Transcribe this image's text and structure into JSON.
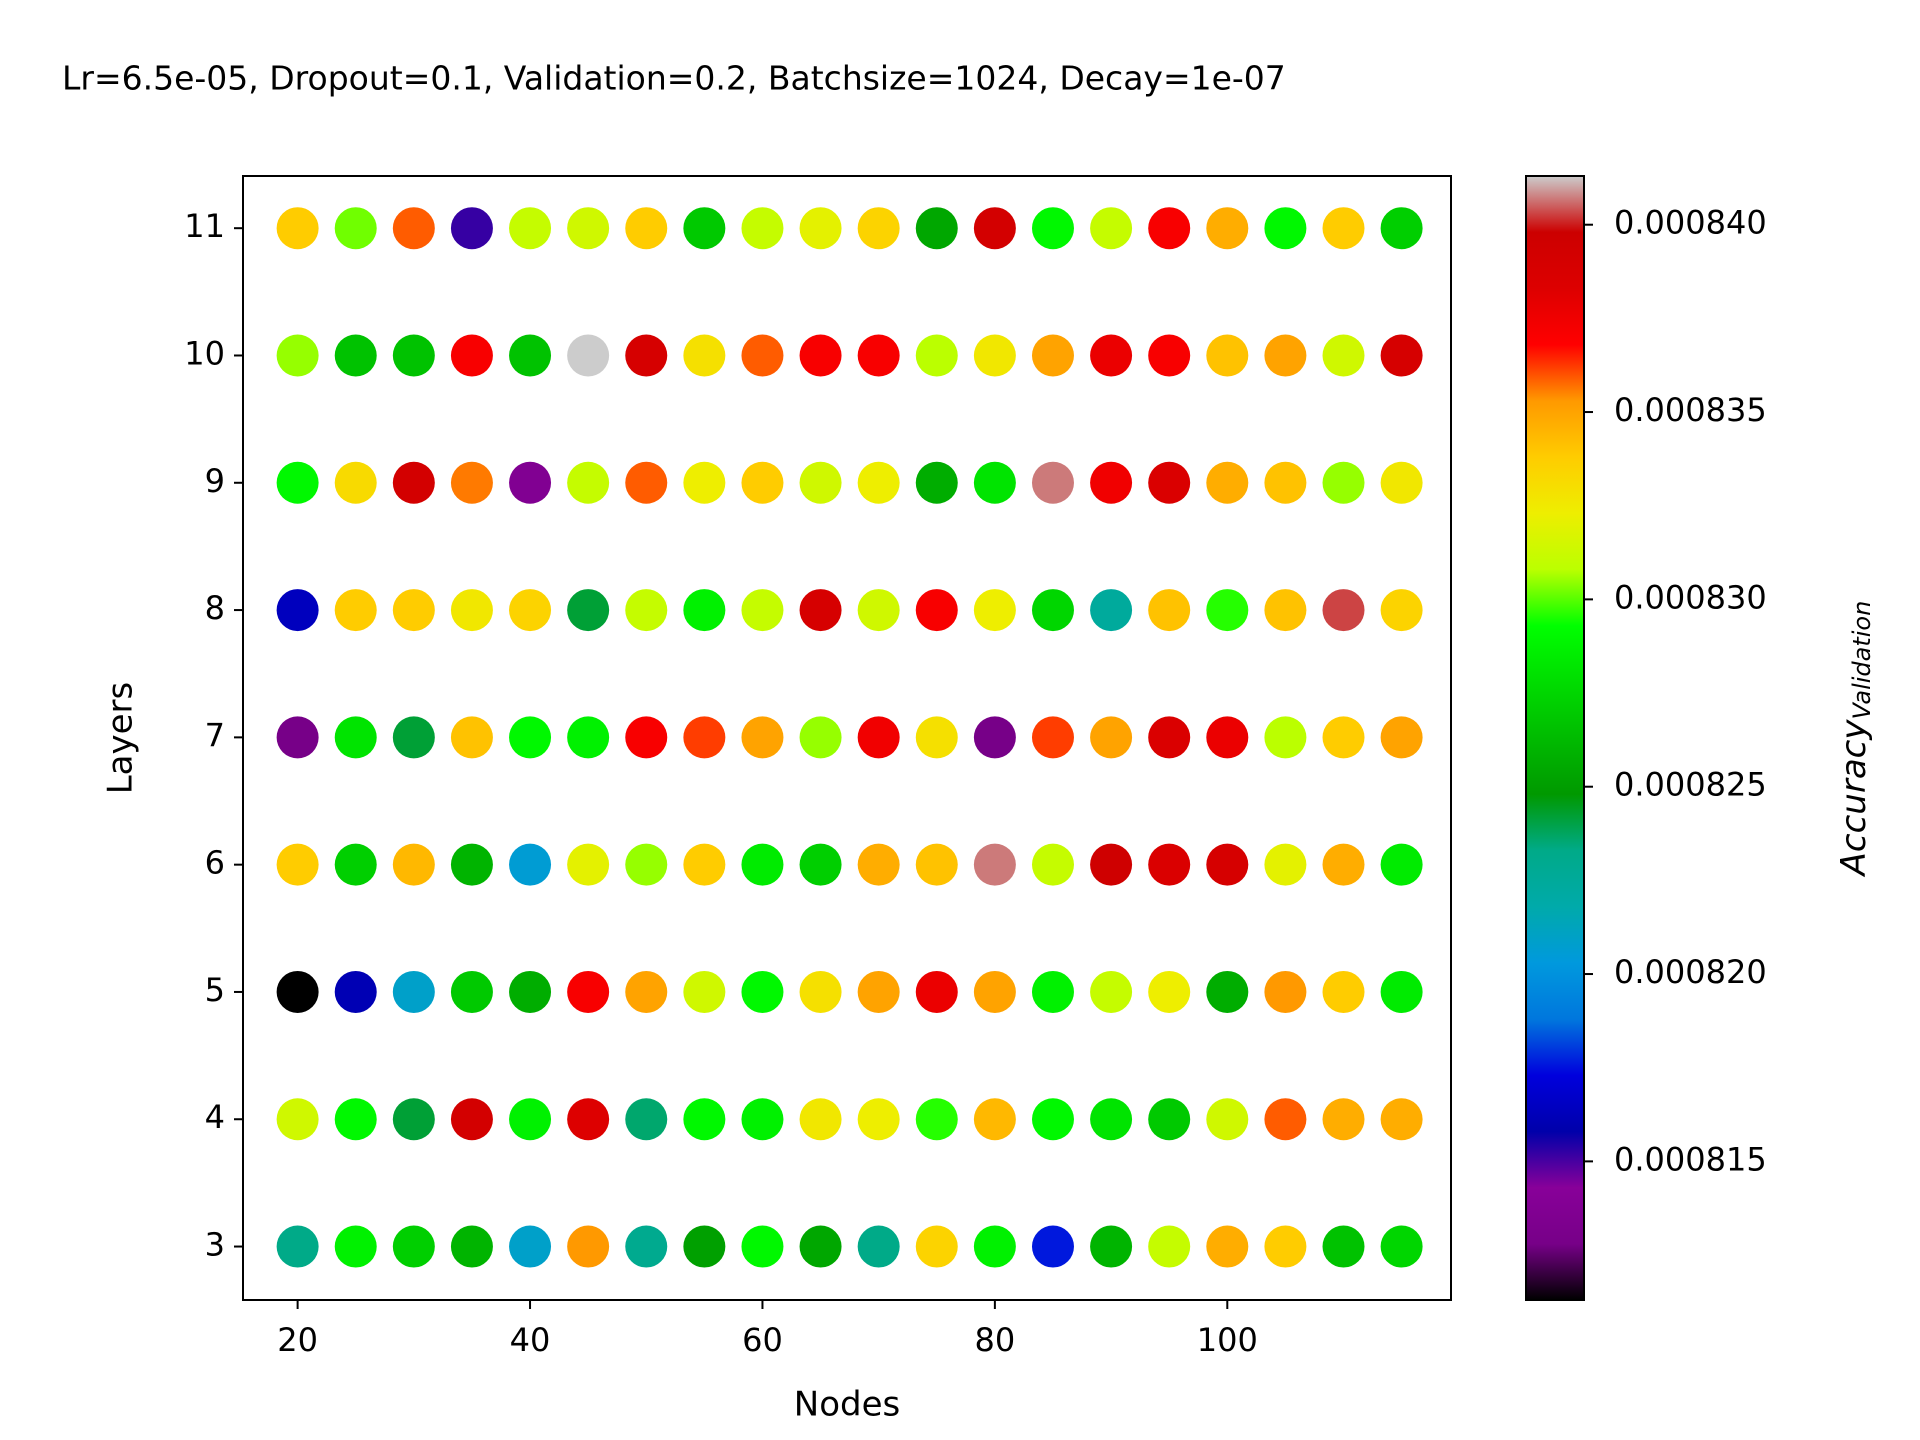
{
  "chart_data": {
    "type": "scatter",
    "title": "Lr=6.5e-05, Dropout=0.1, Validation=0.2, Batchsize=1024, Decay=1e-07",
    "xlabel": "Nodes",
    "ylabel": "Layers",
    "colorbar_label": "Accuracy",
    "colorbar_label_sub": "Validation",
    "x": [
      20,
      25,
      30,
      35,
      40,
      45,
      50,
      55,
      60,
      65,
      70,
      75,
      80,
      85,
      90,
      95,
      100,
      105,
      110,
      115
    ],
    "y": [
      3,
      4,
      5,
      6,
      7,
      8,
      9,
      10,
      11
    ],
    "values": [
      [
        0.0008233,
        0.0008287,
        0.0008272,
        0.000826,
        0.0008209,
        0.0008353,
        0.000823,
        0.0008251,
        0.000829,
        0.0008254,
        0.0008233,
        0.0008335,
        0.0008287,
        0.0008176,
        0.000826,
        0.0008311,
        0.0008347,
        0.0008338,
        0.0008266,
        0.0008275
      ],
      [
        0.0008314,
        0.000829,
        0.0008242,
        0.0008392,
        0.0008287,
        0.0008383,
        0.0008236,
        0.000829,
        0.0008287,
        0.0008326,
        0.0008323,
        0.0008296,
        0.0008344,
        0.000829,
        0.0008281,
        0.0008269,
        0.0008314,
        0.0008359,
        0.0008347,
        0.0008347
      ],
      [
        0.0008113,
        0.0008161,
        0.0008209,
        0.0008269,
        0.0008257,
        0.0008371,
        0.000835,
        0.0008314,
        0.000829,
        0.0008329,
        0.000835,
        0.0008377,
        0.000835,
        0.0008287,
        0.0008311,
        0.0008323,
        0.0008257,
        0.0008353,
        0.0008338,
        0.0008284
      ],
      [
        0.0008338,
        0.0008272,
        0.0008344,
        0.000826,
        0.0008206,
        0.000832,
        0.0008305,
        0.0008338,
        0.0008284,
        0.0008272,
        0.0008347,
        0.0008341,
        0.0008407,
        0.0008311,
        0.0008395,
        0.0008386,
        0.0008389,
        0.000832,
        0.0008347,
        0.0008284
      ],
      [
        0.0008128,
        0.0008281,
        0.0008242,
        0.0008341,
        0.000829,
        0.0008287,
        0.0008371,
        0.0008362,
        0.000835,
        0.0008305,
        0.0008374,
        0.0008329,
        0.0008128,
        0.0008362,
        0.000835,
        0.0008386,
        0.0008377,
        0.0008308,
        0.0008338,
        0.000835
      ],
      [
        0.0008164,
        0.0008338,
        0.0008338,
        0.0008326,
        0.0008335,
        0.0008242,
        0.0008311,
        0.0008287,
        0.0008311,
        0.0008389,
        0.0008314,
        0.0008371,
        0.0008323,
        0.0008275,
        0.0008224,
        0.0008341,
        0.0008296,
        0.0008341,
        0.0008403,
        0.0008335
      ],
      [
        0.000829,
        0.0008332,
        0.0008392,
        0.0008356,
        0.0008137,
        0.0008311,
        0.0008359,
        0.0008323,
        0.0008338,
        0.0008314,
        0.0008323,
        0.0008257,
        0.0008281,
        0.0008407,
        0.0008374,
        0.0008386,
        0.0008347,
        0.0008341,
        0.0008305,
        0.0008326
      ],
      [
        0.0008305,
        0.0008266,
        0.0008266,
        0.0008371,
        0.0008266,
        0.0008413,
        0.0008389,
        0.0008329,
        0.0008359,
        0.0008371,
        0.0008371,
        0.0008308,
        0.0008326,
        0.000835,
        0.0008377,
        0.0008371,
        0.0008341,
        0.000835,
        0.0008314,
        0.0008389
      ],
      [
        0.0008338,
        0.0008302,
        0.0008359,
        0.0008152,
        0.0008311,
        0.0008314,
        0.0008338,
        0.0008269,
        0.0008311,
        0.000832,
        0.0008335,
        0.0008254,
        0.0008392,
        0.000829,
        0.0008311,
        0.0008371,
        0.0008347,
        0.000829,
        0.0008338,
        0.0008272
      ]
    ],
    "xlim": [
      15.3,
      119.25
    ],
    "xticks": [
      20,
      40,
      60,
      80,
      100
    ],
    "ylim": [
      2.58,
      11.41
    ],
    "yticks": [
      3,
      4,
      5,
      6,
      7,
      8,
      9,
      10,
      11
    ],
    "clim": [
      0.0008113,
      0.0008413
    ],
    "cticks": [
      {
        "value": 0.000815,
        "label": "0.000815"
      },
      {
        "value": 0.00082,
        "label": "0.000820"
      },
      {
        "value": 0.000825,
        "label": "0.000825"
      },
      {
        "value": 0.00083,
        "label": "0.000830"
      },
      {
        "value": 0.000835,
        "label": "0.000835"
      },
      {
        "value": 0.00084,
        "label": "0.000840"
      }
    ]
  }
}
